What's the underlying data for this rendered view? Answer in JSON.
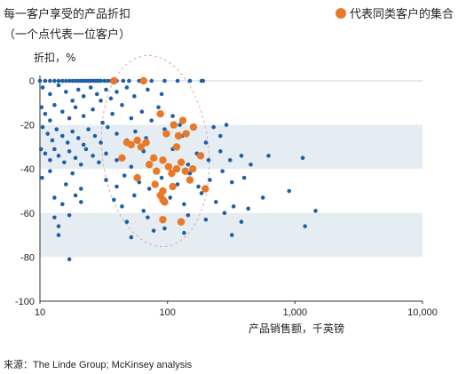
{
  "title_line1": "每一客户享受的产品折扣",
  "title_line2": "（一个点代表一位客户）",
  "legend_label": "代表同类客户的集合",
  "source": "来源：The Linde Group; McKinsey analysis",
  "colors": {
    "blue": "#1f5fa8",
    "orange": "#e8782a",
    "band": "#e6edf2"
  },
  "chart_data": {
    "type": "scatter",
    "title": "每一客户享受的产品折扣",
    "subtitle": "（一个点代表一位客户）",
    "xlabel": "产品销售额，千英镑",
    "ylabel": "折扣，%",
    "x_scale": "log",
    "xlim": [
      10,
      10000
    ],
    "ylim": [
      -100,
      0
    ],
    "x_ticks": [
      10,
      100,
      1000,
      10000
    ],
    "x_tick_labels": [
      "10",
      "100",
      "1,000",
      "10,000"
    ],
    "y_ticks": [
      0,
      -20,
      -40,
      -60,
      -80,
      -100
    ],
    "y_tick_labels": [
      "0",
      "-20",
      "-40",
      "-60",
      "-80",
      "-100"
    ],
    "bands": [
      [
        -20,
        -40
      ],
      [
        -60,
        -80
      ]
    ],
    "grid": false,
    "legend_position": "top-right",
    "series": [
      {
        "name": "",
        "color": "#1f5fa8",
        "points": [
          [
            10,
            0
          ],
          [
            11,
            0
          ],
          [
            12,
            0
          ],
          [
            13,
            0
          ],
          [
            14,
            0
          ],
          [
            15,
            0
          ],
          [
            16,
            0
          ],
          [
            17,
            0
          ],
          [
            18,
            0
          ],
          [
            19,
            0
          ],
          [
            20,
            0
          ],
          [
            21,
            0
          ],
          [
            22,
            0
          ],
          [
            23,
            0
          ],
          [
            24,
            0
          ],
          [
            25,
            0
          ],
          [
            26,
            0
          ],
          [
            27,
            0
          ],
          [
            28,
            0
          ],
          [
            29,
            0
          ],
          [
            30,
            0
          ],
          [
            32,
            0
          ],
          [
            34,
            0
          ],
          [
            36,
            0
          ],
          [
            38,
            0
          ],
          [
            40,
            0
          ],
          [
            45,
            0
          ],
          [
            50,
            0
          ],
          [
            60,
            0
          ],
          [
            75,
            0
          ],
          [
            95,
            0
          ],
          [
            120,
            0
          ],
          [
            150,
            0
          ],
          [
            185,
            0
          ],
          [
            190,
            0
          ],
          [
            10.5,
            -3
          ],
          [
            12,
            -6
          ],
          [
            14,
            -2
          ],
          [
            16,
            -5
          ],
          [
            18,
            -9
          ],
          [
            20,
            -4
          ],
          [
            22,
            -7
          ],
          [
            25,
            -3
          ],
          [
            28,
            -6
          ],
          [
            30,
            -9
          ],
          [
            33,
            -4
          ],
          [
            36,
            -8
          ],
          [
            40,
            -5
          ],
          [
            48,
            -3
          ],
          [
            55,
            -7
          ],
          [
            70,
            -4
          ],
          [
            90,
            -6
          ],
          [
            10.3,
            -12
          ],
          [
            11,
            -15
          ],
          [
            12,
            -18
          ],
          [
            13,
            -11
          ],
          [
            15,
            -14
          ],
          [
            17,
            -17
          ],
          [
            19,
            -12
          ],
          [
            22,
            -16
          ],
          [
            26,
            -13
          ],
          [
            31,
            -19
          ],
          [
            37,
            -15
          ],
          [
            44,
            -11
          ],
          [
            52,
            -17
          ],
          [
            63,
            -14
          ],
          [
            75,
            -18
          ],
          [
            85,
            -12
          ],
          [
            110,
            -16
          ],
          [
            125,
            -20
          ],
          [
            10.5,
            -21
          ],
          [
            11.5,
            -24
          ],
          [
            12.5,
            -27
          ],
          [
            13.5,
            -22
          ],
          [
            15,
            -25
          ],
          [
            16.5,
            -28
          ],
          [
            18,
            -23
          ],
          [
            20,
            -26
          ],
          [
            22,
            -29
          ],
          [
            24,
            -22
          ],
          [
            27,
            -25
          ],
          [
            30,
            -28
          ],
          [
            34,
            -21
          ],
          [
            40,
            -24
          ],
          [
            48,
            -27
          ],
          [
            56,
            -23
          ],
          [
            68,
            -26
          ],
          [
            95,
            -22
          ],
          [
            130,
            -25
          ],
          [
            200,
            -28
          ],
          [
            230,
            -21
          ],
          [
            260,
            -25
          ],
          [
            290,
            -20
          ],
          [
            10.2,
            -31
          ],
          [
            11,
            -33
          ],
          [
            12,
            -36
          ],
          [
            13,
            -31
          ],
          [
            14,
            -34
          ],
          [
            15.5,
            -37
          ],
          [
            17,
            -32
          ],
          [
            19,
            -35
          ],
          [
            21,
            -38
          ],
          [
            23,
            -31
          ],
          [
            26,
            -34
          ],
          [
            29,
            -37
          ],
          [
            33,
            -33
          ],
          [
            40,
            -36
          ],
          [
            52,
            -39
          ],
          [
            65,
            -32
          ],
          [
            78,
            -35
          ],
          [
            110,
            -31
          ],
          [
            145,
            -38
          ],
          [
            170,
            -33
          ],
          [
            210,
            -36
          ],
          [
            260,
            -32
          ],
          [
            310,
            -36
          ],
          [
            380,
            -34
          ],
          [
            450,
            -38
          ],
          [
            620,
            -34
          ],
          [
            1150,
            -35
          ],
          [
            10.4,
            -44
          ],
          [
            12,
            -41
          ],
          [
            16,
            -47
          ],
          [
            18,
            -42
          ],
          [
            21,
            -49
          ],
          [
            33,
            -45
          ],
          [
            40,
            -48
          ],
          [
            46,
            -43
          ],
          [
            60,
            -46
          ],
          [
            72,
            -49
          ],
          [
            90,
            -44
          ],
          [
            120,
            -47
          ],
          [
            150,
            -42
          ],
          [
            175,
            -48
          ],
          [
            215,
            -45
          ],
          [
            270,
            -41
          ],
          [
            320,
            -46
          ],
          [
            400,
            -44
          ],
          [
            13,
            -53
          ],
          [
            15,
            -56
          ],
          [
            19,
            -52
          ],
          [
            21,
            -55
          ],
          [
            38,
            -54
          ],
          [
            44,
            -57
          ],
          [
            55,
            -52
          ],
          [
            65,
            -59
          ],
          [
            105,
            -53
          ],
          [
            135,
            -56
          ],
          [
            185,
            -51
          ],
          [
            240,
            -55
          ],
          [
            330,
            -57
          ],
          [
            560,
            -53
          ],
          [
            900,
            -50
          ],
          [
            13,
            -62
          ],
          [
            14,
            -66
          ],
          [
            17,
            -61
          ],
          [
            48,
            -64
          ],
          [
            70,
            -62
          ],
          [
            95,
            -67
          ],
          [
            145,
            -61
          ],
          [
            200,
            -63
          ],
          [
            280,
            -60
          ],
          [
            380,
            -64
          ],
          [
            430,
            -58
          ],
          [
            1200,
            -66
          ],
          [
            1450,
            -59
          ],
          [
            14,
            -70
          ],
          [
            52,
            -71
          ],
          [
            78,
            -68
          ],
          [
            135,
            -69
          ],
          [
            320,
            -70
          ],
          [
            17,
            -81
          ]
        ]
      },
      {
        "name": "代表同类客户的集合",
        "color": "#e8782a",
        "points": [
          [
            38,
            0
          ],
          [
            65,
            0
          ],
          [
            48,
            -28
          ],
          [
            58,
            -27
          ],
          [
            68,
            -28
          ],
          [
            62,
            -30
          ],
          [
            52,
            -29
          ],
          [
            88,
            -15
          ],
          [
            112,
            -20
          ],
          [
            132,
            -18
          ],
          [
            118,
            -30
          ],
          [
            98,
            -24
          ],
          [
            122,
            -25
          ],
          [
            140,
            -24
          ],
          [
            160,
            -21
          ],
          [
            44,
            -35
          ],
          [
            78,
            -35
          ],
          [
            72,
            -38
          ],
          [
            82,
            -41
          ],
          [
            92,
            -36
          ],
          [
            102,
            -39
          ],
          [
            108,
            -42
          ],
          [
            118,
            -40
          ],
          [
            128,
            -37
          ],
          [
            138,
            -41
          ],
          [
            158,
            -40
          ],
          [
            182,
            -34
          ],
          [
            58,
            -44
          ],
          [
            80,
            -47
          ],
          [
            92,
            -50
          ],
          [
            110,
            -48
          ],
          [
            150,
            -45
          ],
          [
            198,
            -49
          ],
          [
            88,
            -52
          ],
          [
            92,
            -54
          ],
          [
            95,
            -55
          ],
          [
            92,
            -63
          ],
          [
            128,
            -64
          ]
        ]
      }
    ]
  }
}
